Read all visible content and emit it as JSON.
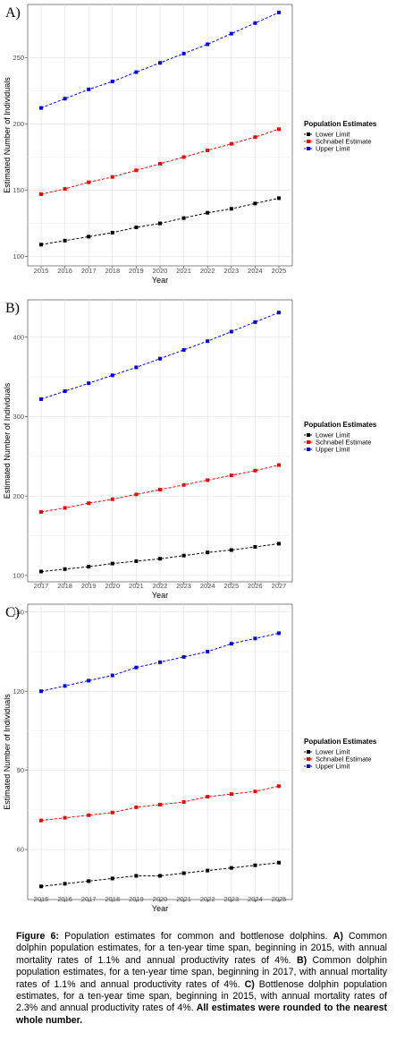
{
  "chart_data": [
    {
      "type": "line",
      "panel_label": "A)",
      "title": "",
      "xlabel": "Year",
      "ylabel": "Estimated Number of Individuals",
      "x": [
        "2015",
        "2016",
        "2017",
        "2018",
        "2019",
        "2020",
        "2021",
        "2022",
        "2023",
        "2024",
        "2025"
      ],
      "yticks": [
        100,
        150,
        200,
        250
      ],
      "ylim": [
        93,
        290
      ],
      "grid": true,
      "legend_position": "right",
      "legend_title": "Population Estimates",
      "series": [
        {
          "name": "Lower Limit",
          "color": "#000000",
          "values": [
            109,
            112,
            115,
            118,
            122,
            125,
            129,
            133,
            136,
            140,
            144
          ]
        },
        {
          "name": "Schnabel Estimate",
          "color": "#ff0000",
          "values": [
            147,
            151,
            156,
            160,
            165,
            170,
            175,
            180,
            185,
            190,
            196
          ]
        },
        {
          "name": "Upper Limit",
          "color": "#0000ff",
          "values": [
            212,
            219,
            226,
            232,
            239,
            246,
            253,
            260,
            268,
            276,
            284
          ]
        }
      ]
    },
    {
      "type": "line",
      "panel_label": "B)",
      "title": "",
      "xlabel": "Year",
      "ylabel": "Estimated Number of Individuals",
      "x": [
        "2017",
        "2018",
        "2019",
        "2020",
        "2021",
        "2022",
        "2023",
        "2024",
        "2025",
        "2026",
        "2027"
      ],
      "yticks": [
        100,
        200,
        300,
        400
      ],
      "ylim": [
        92,
        447
      ],
      "grid": true,
      "legend_position": "right",
      "legend_title": "Population Estimates",
      "series": [
        {
          "name": "Lower Limit",
          "color": "#000000",
          "values": [
            105,
            108,
            111,
            115,
            118,
            121,
            125,
            129,
            132,
            136,
            140
          ]
        },
        {
          "name": "Schnabel Estimate",
          "color": "#ff0000",
          "values": [
            180,
            185,
            191,
            196,
            202,
            208,
            214,
            220,
            226,
            232,
            239
          ]
        },
        {
          "name": "Upper Limit",
          "color": "#0000ff",
          "values": [
            322,
            332,
            342,
            352,
            362,
            373,
            384,
            395,
            407,
            419,
            431
          ]
        }
      ]
    },
    {
      "type": "line",
      "panel_label": "C)",
      "title": "",
      "xlabel": "Year",
      "ylabel": "Estimated Number of Individuals",
      "x": [
        "2015",
        "2016",
        "2017",
        "2018",
        "2019",
        "2020",
        "2021",
        "2022",
        "2023",
        "2024",
        "2025"
      ],
      "yticks": [
        60,
        90,
        120,
        150
      ],
      "ylim": [
        41,
        153
      ],
      "grid": true,
      "legend_position": "right",
      "legend_title": "Population Estimates",
      "series": [
        {
          "name": "Lower Limit",
          "color": "#000000",
          "values": [
            46,
            47,
            48,
            49,
            50,
            50,
            51,
            52,
            53,
            54,
            55
          ]
        },
        {
          "name": "Schnabel Estimate",
          "color": "#ff0000",
          "values": [
            71,
            72,
            73,
            74,
            76,
            77,
            78,
            80,
            81,
            82,
            84
          ]
        },
        {
          "name": "Upper Limit",
          "color": "#0000ff",
          "values": [
            120,
            122,
            124,
            126,
            129,
            131,
            133,
            135,
            138,
            140,
            142
          ]
        }
      ]
    }
  ],
  "caption": {
    "label": "Figure 6:",
    "intro": " Population estimates for common and bottlenose dolphins. ",
    "a_label": "A)",
    "a_text": " Common dolphin population estimates, for a ten-year time span, beginning in 2015, with annual mortality rates of 1.1% and annual productivity rates of 4%. ",
    "b_label": "B)",
    "b_text": " Common dolphin population estimates, for a ten-year time span, beginning in 2017, with annual mortality rates of 1.1% and annual productivity rates of 4%. ",
    "c_label": "C)",
    "c_text": " Bottlenose dolphin population estimates, for a ten-year time span, beginning in 2015, with annual mortality rates of 2.3% and annual productivity rates of 4%.",
    "end_text": " All estimates were rounded to the nearest whole number."
  }
}
